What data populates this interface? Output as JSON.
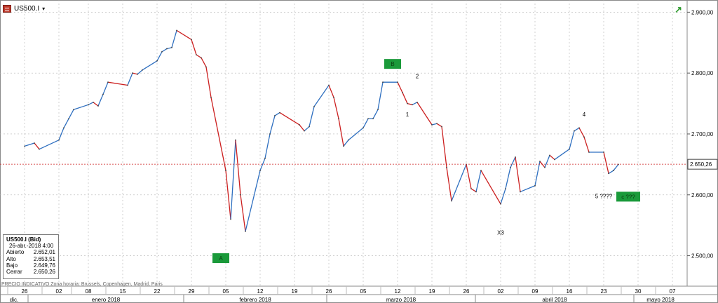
{
  "header": {
    "symbol": "US500.I",
    "caret": "▾",
    "symbol_icon": "chart-symbol-icon",
    "trend_icon": "trend-up-icon",
    "trend_color": "#2e9b2e"
  },
  "info_box": {
    "title": "US500.I (Bid)",
    "datetime": "26-abr.-2018 4:00",
    "rows": [
      {
        "label": "Abierto",
        "value": "2.652,01"
      },
      {
        "label": "Alto",
        "value": "2.653,51"
      },
      {
        "label": "Bajo",
        "value": "2.649,76"
      },
      {
        "label": "Cerrar",
        "value": "2.650,26"
      }
    ]
  },
  "source_note": "PRECIO INDICATIVO  Zona horaria: Brussels, Copenhagen, Madrid, Paris",
  "price_tag": {
    "label": "2.650,26",
    "value": 2650.26
  },
  "colors": {
    "up": "#2e6fc0",
    "down": "#cc1f1f",
    "grid": "#b5b5b5",
    "last_line": "#cc1f1f",
    "marker_fill": "#1a9a3a",
    "marker_text": "#0b3d12"
  },
  "chart_data": {
    "type": "line",
    "title": "",
    "xlabel": "",
    "ylabel": "",
    "ylim": [
      2450,
      2920
    ],
    "grid": true,
    "y_ticks": [
      2500,
      2600,
      2700,
      2800,
      2900
    ],
    "y_tick_labels": [
      "2.500,00",
      "2.600,00",
      "2.700,00",
      "2.800,00",
      "2.900,00"
    ],
    "x_ticks": [
      {
        "label": "26",
        "date": "2017-12-26"
      },
      {
        "label": "02",
        "date": "2018-01-02"
      },
      {
        "label": "08",
        "date": "2018-01-08"
      },
      {
        "label": "15",
        "date": "2018-01-15"
      },
      {
        "label": "22",
        "date": "2018-01-22"
      },
      {
        "label": "29",
        "date": "2018-01-29"
      },
      {
        "label": "05",
        "date": "2018-02-05"
      },
      {
        "label": "12",
        "date": "2018-02-12"
      },
      {
        "label": "19",
        "date": "2018-02-19"
      },
      {
        "label": "26",
        "date": "2018-02-26"
      },
      {
        "label": "05",
        "date": "2018-03-05"
      },
      {
        "label": "12",
        "date": "2018-03-12"
      },
      {
        "label": "19",
        "date": "2018-03-19"
      },
      {
        "label": "26",
        "date": "2018-03-26"
      },
      {
        "label": "02",
        "date": "2018-04-02"
      },
      {
        "label": "09",
        "date": "2018-04-09"
      },
      {
        "label": "16",
        "date": "2018-04-16"
      },
      {
        "label": "23",
        "date": "2018-04-23"
      },
      {
        "label": "30",
        "date": "2018-04-30"
      },
      {
        "label": "07",
        "date": "2018-05-07"
      }
    ],
    "months": [
      {
        "label": "dic."
      },
      {
        "label": "enero 2018"
      },
      {
        "label": "febrero 2018"
      },
      {
        "label": "marzo 2018"
      },
      {
        "label": "abril 2018"
      },
      {
        "label": "mayo 2018"
      }
    ],
    "series": [
      {
        "points": [
          [
            "2017-12-26",
            2680
          ],
          [
            "2017-12-28",
            2685
          ],
          [
            "2017-12-29",
            2675
          ],
          [
            "2018-01-02",
            2690
          ],
          [
            "2018-01-03",
            2710
          ],
          [
            "2018-01-04",
            2725
          ],
          [
            "2018-01-05",
            2740
          ],
          [
            "2018-01-08",
            2748
          ],
          [
            "2018-01-09",
            2752
          ],
          [
            "2018-01-10",
            2746
          ],
          [
            "2018-01-11",
            2765
          ],
          [
            "2018-01-12",
            2785
          ],
          [
            "2018-01-16",
            2780
          ],
          [
            "2018-01-17",
            2800
          ],
          [
            "2018-01-18",
            2798
          ],
          [
            "2018-01-19",
            2805
          ],
          [
            "2018-01-22",
            2820
          ],
          [
            "2018-01-23",
            2835
          ],
          [
            "2018-01-24",
            2840
          ],
          [
            "2018-01-25",
            2842
          ],
          [
            "2018-01-26",
            2870
          ],
          [
            "2018-01-29",
            2855
          ],
          [
            "2018-01-30",
            2830
          ],
          [
            "2018-01-31",
            2825
          ],
          [
            "2018-02-01",
            2810
          ],
          [
            "2018-02-02",
            2760
          ],
          [
            "2018-02-05",
            2640
          ],
          [
            "2018-02-06",
            2560
          ],
          [
            "2018-02-07",
            2690
          ],
          [
            "2018-02-08",
            2600
          ],
          [
            "2018-02-09",
            2540
          ],
          [
            "2018-02-12",
            2640
          ],
          [
            "2018-02-13",
            2660
          ],
          [
            "2018-02-14",
            2700
          ],
          [
            "2018-02-15",
            2730
          ],
          [
            "2018-02-16",
            2735
          ],
          [
            "2018-02-20",
            2715
          ],
          [
            "2018-02-21",
            2705
          ],
          [
            "2018-02-22",
            2712
          ],
          [
            "2018-02-23",
            2745
          ],
          [
            "2018-02-26",
            2780
          ],
          [
            "2018-02-27",
            2760
          ],
          [
            "2018-02-28",
            2725
          ],
          [
            "2018-03-01",
            2680
          ],
          [
            "2018-03-02",
            2690
          ],
          [
            "2018-03-05",
            2710
          ],
          [
            "2018-03-06",
            2725
          ],
          [
            "2018-03-07",
            2725
          ],
          [
            "2018-03-08",
            2740
          ],
          [
            "2018-03-09",
            2785
          ],
          [
            "2018-03-12",
            2785
          ],
          [
            "2018-03-13",
            2768
          ],
          [
            "2018-03-14",
            2750
          ],
          [
            "2018-03-15",
            2748
          ],
          [
            "2018-03-16",
            2752
          ],
          [
            "2018-03-19",
            2715
          ],
          [
            "2018-03-20",
            2717
          ],
          [
            "2018-03-21",
            2712
          ],
          [
            "2018-03-22",
            2645
          ],
          [
            "2018-03-23",
            2590
          ],
          [
            "2018-03-26",
            2650
          ],
          [
            "2018-03-27",
            2610
          ],
          [
            "2018-03-28",
            2605
          ],
          [
            "2018-03-29",
            2640
          ],
          [
            "2018-04-02",
            2585
          ],
          [
            "2018-04-03",
            2610
          ],
          [
            "2018-04-04",
            2645
          ],
          [
            "2018-04-05",
            2662
          ],
          [
            "2018-04-06",
            2605
          ],
          [
            "2018-04-09",
            2615
          ],
          [
            "2018-04-10",
            2655
          ],
          [
            "2018-04-11",
            2645
          ],
          [
            "2018-04-12",
            2665
          ],
          [
            "2018-04-13",
            2658
          ],
          [
            "2018-04-16",
            2675
          ],
          [
            "2018-04-17",
            2705
          ],
          [
            "2018-04-18",
            2710
          ],
          [
            "2018-04-19",
            2695
          ],
          [
            "2018-04-20",
            2670
          ],
          [
            "2018-04-23",
            2670
          ],
          [
            "2018-04-24",
            2635
          ],
          [
            "2018-04-25",
            2640
          ],
          [
            "2018-04-26",
            2650
          ]
        ]
      }
    ],
    "annotations": [
      {
        "type": "box",
        "label": "B",
        "date": "2018-03-11",
        "value": 2815
      },
      {
        "type": "box",
        "label": "A",
        "date": "2018-02-04",
        "value": 2496
      },
      {
        "type": "box",
        "label": "c ???",
        "date": "2018-04-28",
        "value": 2597
      },
      {
        "type": "text",
        "label": "2",
        "date": "2018-03-16",
        "value": 2795
      },
      {
        "type": "text",
        "label": "1",
        "date": "2018-03-14",
        "value": 2732
      },
      {
        "type": "text",
        "label": "4",
        "date": "2018-04-19",
        "value": 2732
      },
      {
        "type": "text",
        "label": "5 ????",
        "date": "2018-04-23",
        "value": 2598
      },
      {
        "type": "text",
        "label": "X3",
        "date": "2018-04-02",
        "value": 2538
      }
    ]
  }
}
